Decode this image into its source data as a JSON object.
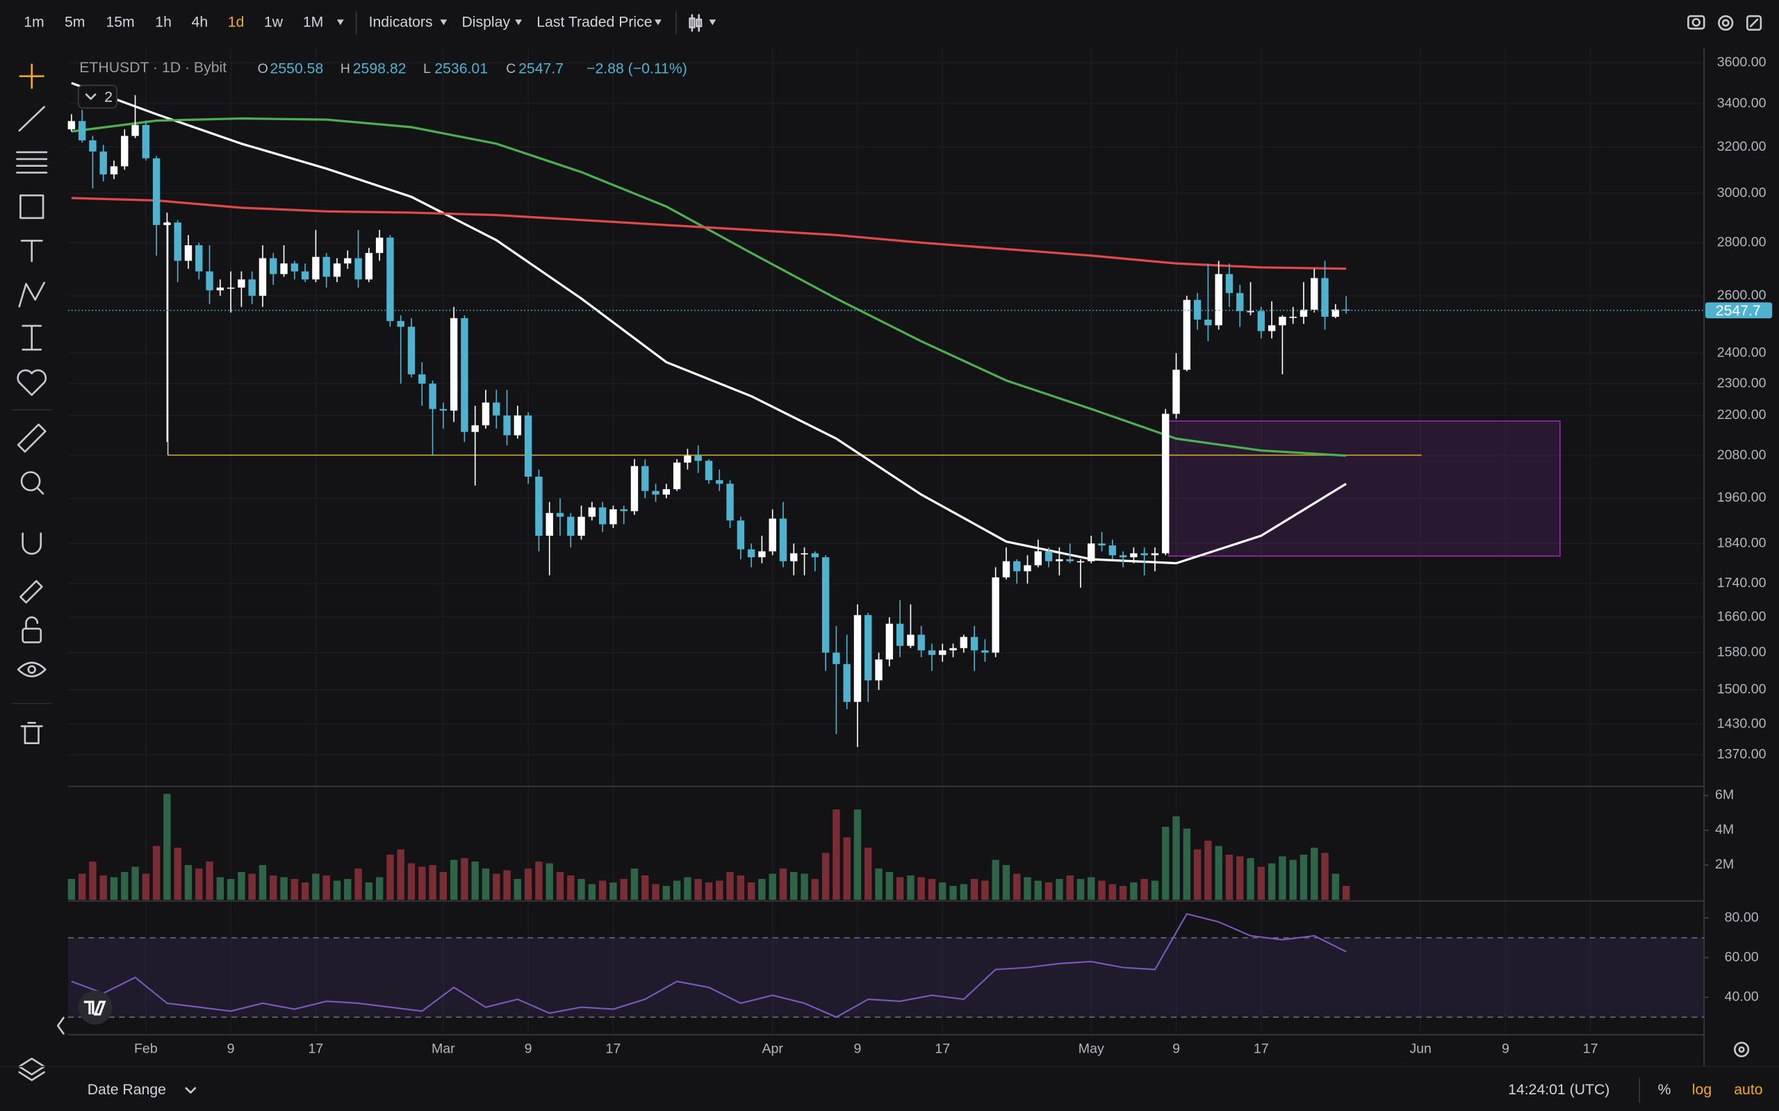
{
  "toolbar": {
    "intervals": [
      "1m",
      "5m",
      "15m",
      "1h",
      "4h",
      "1d",
      "1w",
      "1M"
    ],
    "active": 5,
    "active_color": "#f5a623",
    "menus": [
      "Indicators",
      "Display",
      "Last Traded Price"
    ]
  },
  "chart_data": {
    "type": "candlestick",
    "symbol": "ETHUSDT · 1D · Bybit",
    "ohlc_labels": [
      "O",
      "H",
      "L",
      "C"
    ],
    "change_label": "−2.88 (−0.11%)",
    "indicator_count": "2",
    "log_scale": true,
    "grid": true,
    "up_color": "#ffffff",
    "down_color": "#4fb3d0",
    "ylim": [
      1311,
      3675
    ],
    "yticks": [
      {
        "value": 3600,
        "label": "3600.00"
      },
      {
        "value": 3400,
        "label": "3400.00"
      },
      {
        "value": 3200,
        "label": "3200.00"
      },
      {
        "value": 3000,
        "label": "3000.00"
      },
      {
        "value": 2800,
        "label": "2800.00"
      },
      {
        "value": 2600,
        "label": "2600.00"
      },
      {
        "value": 2400,
        "label": "2400.00"
      },
      {
        "value": 2300,
        "label": "2300.00"
      },
      {
        "value": 2200,
        "label": "2200.00"
      },
      {
        "value": 2080,
        "label": "2080.00"
      },
      {
        "value": 1960,
        "label": "1960.00"
      },
      {
        "value": 1840,
        "label": "1840.00"
      },
      {
        "value": 1740,
        "label": "1740.00"
      },
      {
        "value": 1660,
        "label": "1660.00"
      },
      {
        "value": 1580,
        "label": "1580.00"
      },
      {
        "value": 1500,
        "label": "1500.00"
      },
      {
        "value": 1430,
        "label": "1430.00"
      },
      {
        "value": 1370,
        "label": "1370.00"
      }
    ],
    "xlim": [
      -0.32,
      153.7
    ],
    "xticks": [
      {
        "value": 7,
        "label": "Feb"
      },
      {
        "value": 15,
        "label": "9"
      },
      {
        "value": 23,
        "label": "17"
      },
      {
        "value": 35,
        "label": "Mar"
      },
      {
        "value": 43,
        "label": "9"
      },
      {
        "value": 51,
        "label": "17"
      },
      {
        "value": 66,
        "label": "Apr"
      },
      {
        "value": 74,
        "label": "9"
      },
      {
        "value": 82,
        "label": "17"
      },
      {
        "value": 96,
        "label": "May"
      },
      {
        "value": 104,
        "label": "9"
      },
      {
        "value": 112,
        "label": "17"
      },
      {
        "value": 127,
        "label": "Jun"
      },
      {
        "value": 135,
        "label": "9"
      },
      {
        "value": 143,
        "label": "17"
      }
    ],
    "ohlc": [
      [
        3280,
        3350,
        3270,
        3318
      ],
      [
        3318,
        3370,
        3220,
        3230
      ],
      [
        3230,
        3250,
        3020,
        3180
      ],
      [
        3180,
        3210,
        3050,
        3080
      ],
      [
        3080,
        3140,
        3060,
        3115
      ],
      [
        3115,
        3280,
        3100,
        3250
      ],
      [
        3250,
        3440,
        3240,
        3300
      ],
      [
        3300,
        3320,
        3140,
        3150
      ],
      [
        3150,
        3160,
        2750,
        2870
      ],
      [
        2870,
        2920,
        2120,
        2880
      ],
      [
        2880,
        2890,
        2650,
        2730
      ],
      [
        2730,
        2830,
        2700,
        2790
      ],
      [
        2790,
        2800,
        2660,
        2690
      ],
      [
        2690,
        2790,
        2570,
        2620
      ],
      [
        2620,
        2660,
        2600,
        2630
      ],
      [
        2630,
        2690,
        2540,
        2630
      ],
      [
        2630,
        2690,
        2560,
        2660
      ],
      [
        2660,
        2690,
        2570,
        2600
      ],
      [
        2600,
        2790,
        2560,
        2740
      ],
      [
        2740,
        2760,
        2640,
        2680
      ],
      [
        2680,
        2790,
        2670,
        2720
      ],
      [
        2720,
        2730,
        2660,
        2690
      ],
      [
        2690,
        2720,
        2650,
        2660
      ],
      [
        2660,
        2850,
        2650,
        2745
      ],
      [
        2745,
        2760,
        2630,
        2670
      ],
      [
        2670,
        2740,
        2650,
        2720
      ],
      [
        2720,
        2770,
        2700,
        2740
      ],
      [
        2740,
        2850,
        2630,
        2660
      ],
      [
        2660,
        2780,
        2650,
        2760
      ],
      [
        2760,
        2850,
        2730,
        2820
      ],
      [
        2820,
        2830,
        2490,
        2510
      ],
      [
        2510,
        2530,
        2300,
        2490
      ],
      [
        2490,
        2520,
        2320,
        2330
      ],
      [
        2330,
        2370,
        2230,
        2300
      ],
      [
        2300,
        2310,
        2080,
        2220
      ],
      [
        2220,
        2240,
        2160,
        2215
      ],
      [
        2215,
        2560,
        2180,
        2520
      ],
      [
        2520,
        2530,
        2120,
        2150
      ],
      [
        2150,
        2230,
        1995,
        2170
      ],
      [
        2170,
        2280,
        2160,
        2240
      ],
      [
        2240,
        2280,
        2160,
        2200
      ],
      [
        2200,
        2280,
        2110,
        2140
      ],
      [
        2140,
        2230,
        2130,
        2200
      ],
      [
        2200,
        2210,
        2000,
        2020
      ],
      [
        2020,
        2040,
        1820,
        1860
      ],
      [
        1860,
        1950,
        1760,
        1920
      ],
      [
        1920,
        1960,
        1860,
        1910
      ],
      [
        1910,
        1920,
        1830,
        1860
      ],
      [
        1860,
        1940,
        1850,
        1910
      ],
      [
        1910,
        1950,
        1900,
        1935
      ],
      [
        1935,
        1950,
        1870,
        1890
      ],
      [
        1890,
        1940,
        1880,
        1930
      ],
      [
        1930,
        1940,
        1890,
        1925
      ],
      [
        1925,
        2070,
        1915,
        2050
      ],
      [
        2050,
        2070,
        1960,
        1980
      ],
      [
        1980,
        2000,
        1950,
        1970
      ],
      [
        1970,
        2000,
        1960,
        1985
      ],
      [
        1985,
        2070,
        1980,
        2060
      ],
      [
        2060,
        2100,
        2040,
        2080
      ],
      [
        2080,
        2110,
        2030,
        2065
      ],
      [
        2065,
        2070,
        2000,
        2010
      ],
      [
        2010,
        2040,
        1980,
        2000
      ],
      [
        2000,
        2010,
        1880,
        1900
      ],
      [
        1900,
        1910,
        1800,
        1825
      ],
      [
        1825,
        1840,
        1780,
        1805
      ],
      [
        1805,
        1860,
        1790,
        1820
      ],
      [
        1820,
        1930,
        1810,
        1905
      ],
      [
        1905,
        1950,
        1780,
        1795
      ],
      [
        1795,
        1840,
        1760,
        1815
      ],
      [
        1815,
        1830,
        1760,
        1815
      ],
      [
        1815,
        1820,
        1770,
        1805
      ],
      [
        1805,
        1810,
        1540,
        1580
      ],
      [
        1580,
        1640,
        1410,
        1555
      ],
      [
        1555,
        1620,
        1460,
        1475
      ],
      [
        1475,
        1690,
        1385,
        1665
      ],
      [
        1665,
        1670,
        1475,
        1520
      ],
      [
        1520,
        1580,
        1500,
        1565
      ],
      [
        1565,
        1660,
        1550,
        1645
      ],
      [
        1645,
        1700,
        1570,
        1595
      ],
      [
        1595,
        1690,
        1590,
        1620
      ],
      [
        1620,
        1640,
        1570,
        1585
      ],
      [
        1585,
        1600,
        1540,
        1575
      ],
      [
        1575,
        1600,
        1560,
        1585
      ],
      [
        1585,
        1600,
        1570,
        1590
      ],
      [
        1590,
        1620,
        1580,
        1615
      ],
      [
        1615,
        1640,
        1540,
        1585
      ],
      [
        1585,
        1610,
        1560,
        1580
      ],
      [
        1580,
        1780,
        1570,
        1755
      ],
      [
        1755,
        1830,
        1750,
        1795
      ],
      [
        1795,
        1800,
        1740,
        1770
      ],
      [
        1770,
        1810,
        1740,
        1785
      ],
      [
        1785,
        1850,
        1780,
        1820
      ],
      [
        1820,
        1830,
        1780,
        1795
      ],
      [
        1795,
        1830,
        1760,
        1800
      ],
      [
        1800,
        1840,
        1790,
        1795
      ],
      [
        1795,
        1800,
        1730,
        1795
      ],
      [
        1795,
        1860,
        1790,
        1840
      ],
      [
        1840,
        1870,
        1820,
        1835
      ],
      [
        1835,
        1850,
        1800,
        1810
      ],
      [
        1810,
        1820,
        1780,
        1805
      ],
      [
        1805,
        1830,
        1790,
        1815
      ],
      [
        1815,
        1830,
        1760,
        1810
      ],
      [
        1810,
        1830,
        1770,
        1815
      ],
      [
        1815,
        2220,
        1810,
        2205
      ],
      [
        2205,
        2400,
        2190,
        2345
      ],
      [
        2345,
        2600,
        2340,
        2585
      ],
      [
        2585,
        2610,
        2480,
        2515
      ],
      [
        2515,
        2720,
        2440,
        2495
      ],
      [
        2495,
        2730,
        2480,
        2680
      ],
      [
        2680,
        2720,
        2560,
        2610
      ],
      [
        2610,
        2640,
        2490,
        2545
      ],
      [
        2545,
        2650,
        2530,
        2545
      ],
      [
        2545,
        2560,
        2450,
        2475
      ],
      [
        2475,
        2580,
        2450,
        2495
      ],
      [
        2495,
        2530,
        2330,
        2525
      ],
      [
        2525,
        2560,
        2500,
        2525
      ],
      [
        2525,
        2650,
        2500,
        2550
      ],
      [
        2550,
        2700,
        2540,
        2665
      ],
      [
        2665,
        2730,
        2480,
        2525
      ],
      [
        2525,
        2570,
        2520,
        2550.58
      ],
      [
        2550.58,
        2598.82,
        2536.01,
        2547.7
      ]
    ],
    "ma": [
      {
        "color": "#ffffff",
        "x": [
          0,
          8,
          16,
          24,
          32,
          40,
          48,
          56,
          64,
          72,
          80,
          88,
          96,
          104,
          112,
          120
        ],
        "values": [
          3499,
          3350,
          3215,
          3105,
          2985,
          2810,
          2590,
          2370,
          2260,
          2130,
          1970,
          1845,
          1800,
          1790,
          1860,
          2000
        ]
      },
      {
        "color": "#4caf50",
        "x": [
          0,
          8,
          16,
          24,
          32,
          40,
          48,
          56,
          64,
          72,
          80,
          88,
          96,
          104,
          112,
          120
        ],
        "values": [
          3270,
          3320,
          3330,
          3325,
          3290,
          3215,
          3090,
          2945,
          2760,
          2590,
          2440,
          2310,
          2220,
          2130,
          2095,
          2080
        ]
      },
      {
        "color": "#e0484b",
        "x": [
          0,
          8,
          16,
          24,
          32,
          40,
          48,
          56,
          64,
          72,
          80,
          88,
          96,
          104,
          112,
          120
        ],
        "values": [
          2980,
          2970,
          2940,
          2925,
          2920,
          2910,
          2890,
          2870,
          2850,
          2830,
          2800,
          2775,
          2750,
          2720,
          2705,
          2700
        ]
      }
    ],
    "volume": {
      "up_color": "#2e6447",
      "down_color": "#7a2d35",
      "ylim": [
        0,
        6.4
      ],
      "yticks": [
        {
          "value": 6,
          "label": "6M"
        },
        {
          "value": 4,
          "label": "4M"
        },
        {
          "value": 2,
          "label": "2M"
        }
      ],
      "values": [
        1.2,
        1.5,
        2.2,
        1.4,
        1.3,
        1.6,
        1.9,
        1.5,
        3.1,
        6.1,
        3.0,
        2.0,
        1.8,
        2.2,
        1.3,
        1.2,
        1.6,
        1.5,
        2.0,
        1.4,
        1.3,
        1.2,
        1.0,
        1.5,
        1.4,
        1.1,
        1.2,
        1.8,
        1.0,
        1.3,
        2.6,
        2.9,
        2.1,
        1.9,
        2.0,
        1.6,
        2.3,
        2.4,
        2.2,
        1.8,
        1.5,
        1.7,
        1.2,
        1.8,
        2.2,
        2.1,
        1.6,
        1.4,
        1.2,
        0.9,
        1.1,
        1.0,
        1.2,
        1.8,
        1.4,
        0.9,
        0.8,
        1.1,
        1.3,
        1.2,
        1.0,
        1.1,
        1.6,
        1.4,
        1.0,
        1.2,
        1.5,
        1.8,
        1.6,
        1.5,
        1.2,
        2.7,
        5.2,
        3.6,
        5.2,
        3.0,
        1.8,
        1.6,
        1.3,
        1.4,
        1.3,
        1.2,
        1.0,
        0.8,
        0.9,
        1.2,
        1.1,
        2.3,
        2.0,
        1.5,
        1.3,
        1.1,
        1.0,
        1.2,
        1.4,
        1.2,
        1.3,
        1.1,
        0.9,
        0.8,
        1.0,
        1.2,
        1.1,
        4.2,
        4.8,
        4.1,
        2.9,
        3.4,
        3.1,
        2.6,
        2.5,
        2.4,
        1.9,
        2.1,
        2.5,
        2.3,
        2.6,
        3.0,
        2.7,
        1.5,
        0.8
      ]
    },
    "rsi": {
      "color": "#7e57c2",
      "ylim": [
        21.1,
        88
      ],
      "yticks": [
        {
          "value": 80,
          "label": "80.00"
        },
        {
          "value": 60,
          "label": "60.00"
        },
        {
          "value": 40,
          "label": "40.00"
        }
      ],
      "bands": [
        70,
        30
      ],
      "x": [
        0,
        3,
        6,
        9,
        12,
        15,
        18,
        21,
        24,
        27,
        30,
        33,
        36,
        39,
        42,
        45,
        48,
        51,
        54,
        57,
        60,
        63,
        66,
        69,
        72,
        75,
        78,
        81,
        84,
        87,
        90,
        93,
        96,
        99,
        102,
        105,
        108,
        111,
        114,
        117,
        120
      ],
      "values": [
        48,
        42,
        50,
        37,
        35,
        33,
        37,
        34,
        38,
        37,
        35,
        33,
        45,
        35,
        39,
        32,
        35,
        34,
        39,
        48,
        45,
        37,
        41,
        37,
        30,
        39,
        38,
        41,
        39,
        54,
        55,
        57,
        58,
        55,
        54,
        82,
        78,
        71,
        69,
        71,
        63
      ]
    }
  },
  "footer": {
    "date_range": "Date Range",
    "time": "14:24:01 (UTC)",
    "percent": "%",
    "log": "log",
    "auto": "auto"
  }
}
